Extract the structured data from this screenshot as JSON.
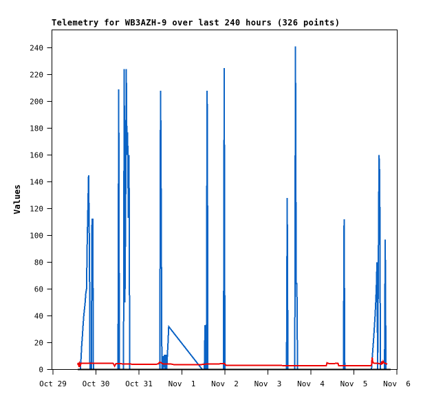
{
  "chart_data": {
    "type": "line",
    "title": "Telemetry for WB3AZH-9 over last 240 hours (326 points)",
    "xlabel": "",
    "ylabel": "Values",
    "ylim": [
      0,
      240
    ],
    "grid": false,
    "legend": "none",
    "y_ticks": [
      0,
      20,
      40,
      60,
      80,
      100,
      120,
      140,
      160,
      180,
      200,
      220,
      240
    ],
    "x_ticks": [
      {
        "label": "Oct 29",
        "d": 0
      },
      {
        "label": "Oct 30",
        "d": 1
      },
      {
        "label": "Oct 31",
        "d": 2
      },
      {
        "label": "Nov  1",
        "d": 3
      },
      {
        "label": "Nov  2",
        "d": 4
      },
      {
        "label": "Nov  3",
        "d": 5
      },
      {
        "label": "Nov  4",
        "d": 6
      },
      {
        "label": "Nov  5",
        "d": 7
      },
      {
        "label": "Nov  6",
        "d": 8
      }
    ],
    "x_unit": "days since Oct 29",
    "series": [
      {
        "name": "blue-channel",
        "color": "#0b63c5",
        "points": [
          [
            0.574,
            0
          ],
          [
            0.637,
            0
          ],
          [
            0.653,
            8
          ],
          [
            0.669,
            18
          ],
          [
            0.685,
            25
          ],
          [
            0.701,
            33
          ],
          [
            0.717,
            40
          ],
          [
            0.733,
            45
          ],
          [
            0.749,
            50
          ],
          [
            0.765,
            57
          ],
          [
            0.781,
            60
          ],
          [
            0.797,
            95
          ],
          [
            0.813,
            120
          ],
          [
            0.829,
            145
          ],
          [
            0.845,
            100
          ],
          [
            0.853,
            62
          ],
          [
            0.861,
            0
          ],
          [
            0.892,
            0
          ],
          [
            0.908,
            112
          ],
          [
            0.924,
            112
          ],
          [
            0.94,
            0
          ],
          [
            1.514,
            0
          ],
          [
            1.53,
            209
          ],
          [
            1.546,
            0
          ],
          [
            1.641,
            0
          ],
          [
            1.657,
            224
          ],
          [
            1.673,
            50
          ],
          [
            1.689,
            113
          ],
          [
            1.705,
            224
          ],
          [
            1.721,
            160
          ],
          [
            1.737,
            177
          ],
          [
            1.753,
            113
          ],
          [
            1.769,
            160
          ],
          [
            1.785,
            0
          ],
          [
            2.486,
            0
          ],
          [
            2.502,
            208
          ],
          [
            2.51,
            177
          ],
          [
            2.534,
            0
          ],
          [
            2.55,
            0
          ],
          [
            2.56,
            10
          ],
          [
            2.57,
            0
          ],
          [
            2.582,
            9
          ],
          [
            2.598,
            11
          ],
          [
            2.61,
            0
          ],
          [
            2.629,
            11
          ],
          [
            2.645,
            0
          ],
          [
            2.661,
            10
          ],
          [
            2.677,
            20
          ],
          [
            2.693,
            32
          ],
          [
            3.474,
            0
          ],
          [
            3.522,
            0
          ],
          [
            3.538,
            33
          ],
          [
            3.554,
            0
          ],
          [
            3.57,
            0
          ],
          [
            3.586,
            208
          ],
          [
            3.594,
            177
          ],
          [
            3.602,
            0
          ],
          [
            3.968,
            0
          ],
          [
            3.984,
            225
          ],
          [
            4.0,
            0
          ],
          [
            5.434,
            0
          ],
          [
            5.45,
            128
          ],
          [
            5.466,
            0
          ],
          [
            5.625,
            0
          ],
          [
            5.641,
            241
          ],
          [
            5.657,
            64
          ],
          [
            5.673,
            64
          ],
          [
            5.689,
            0
          ],
          [
            6.757,
            0
          ],
          [
            6.773,
            112
          ],
          [
            6.789,
            0
          ],
          [
            7.41,
            0
          ],
          [
            7.426,
            8
          ],
          [
            7.442,
            15
          ],
          [
            7.458,
            22
          ],
          [
            7.474,
            30
          ],
          [
            7.49,
            38
          ],
          [
            7.506,
            48
          ],
          [
            7.522,
            60
          ],
          [
            7.538,
            80
          ],
          [
            7.554,
            0
          ],
          [
            7.586,
            160
          ],
          [
            7.602,
            144
          ],
          [
            7.618,
            0
          ],
          [
            7.713,
            0
          ],
          [
            7.729,
            97
          ],
          [
            7.737,
            48
          ],
          [
            7.745,
            0
          ],
          [
            7.777,
            0
          ]
        ]
      },
      {
        "name": "red-channel",
        "color": "#ee0000",
        "points": [
          [
            0.574,
            3.5
          ],
          [
            0.59,
            5
          ],
          [
            0.606,
            2
          ],
          [
            0.621,
            4.5
          ],
          [
            0.637,
            3
          ],
          [
            0.653,
            4.5
          ],
          [
            0.765,
            4.7
          ],
          [
            1.004,
            4.5
          ],
          [
            1.323,
            4.5
          ],
          [
            1.402,
            4.5
          ],
          [
            1.434,
            2.5
          ],
          [
            1.466,
            4.3
          ],
          [
            1.641,
            4.2
          ],
          [
            1.96,
            3.8
          ],
          [
            2.279,
            3.8
          ],
          [
            2.438,
            4
          ],
          [
            2.486,
            5.5
          ],
          [
            2.518,
            5
          ],
          [
            2.566,
            4
          ],
          [
            2.757,
            4
          ],
          [
            2.837,
            3.5
          ],
          [
            3.076,
            3.5
          ],
          [
            3.395,
            3.5
          ],
          [
            3.554,
            4
          ],
          [
            3.873,
            4.2
          ],
          [
            3.984,
            4.5
          ],
          [
            4.032,
            3
          ],
          [
            4.51,
            3
          ],
          [
            5.147,
            3
          ],
          [
            5.625,
            2.8
          ],
          [
            6.104,
            2.8
          ],
          [
            6.359,
            2.8
          ],
          [
            6.375,
            5
          ],
          [
            6.422,
            4.3
          ],
          [
            6.582,
            4.5
          ],
          [
            6.63,
            4.5
          ],
          [
            6.646,
            2.8
          ],
          [
            6.901,
            2.8
          ],
          [
            7.219,
            2.8
          ],
          [
            7.378,
            2.8
          ],
          [
            7.41,
            3
          ],
          [
            7.426,
            9
          ],
          [
            7.442,
            5
          ],
          [
            7.506,
            4.5
          ],
          [
            7.57,
            4.5
          ],
          [
            7.633,
            4
          ],
          [
            7.649,
            6
          ],
          [
            7.665,
            4
          ],
          [
            7.681,
            6
          ],
          [
            7.697,
            5
          ],
          [
            7.729,
            4.5
          ],
          [
            7.777,
            4
          ]
        ]
      },
      {
        "name": "black-channel",
        "color": "#000000",
        "points": [
          [
            0.574,
            0
          ],
          [
            7.857,
            0
          ]
        ]
      }
    ]
  }
}
